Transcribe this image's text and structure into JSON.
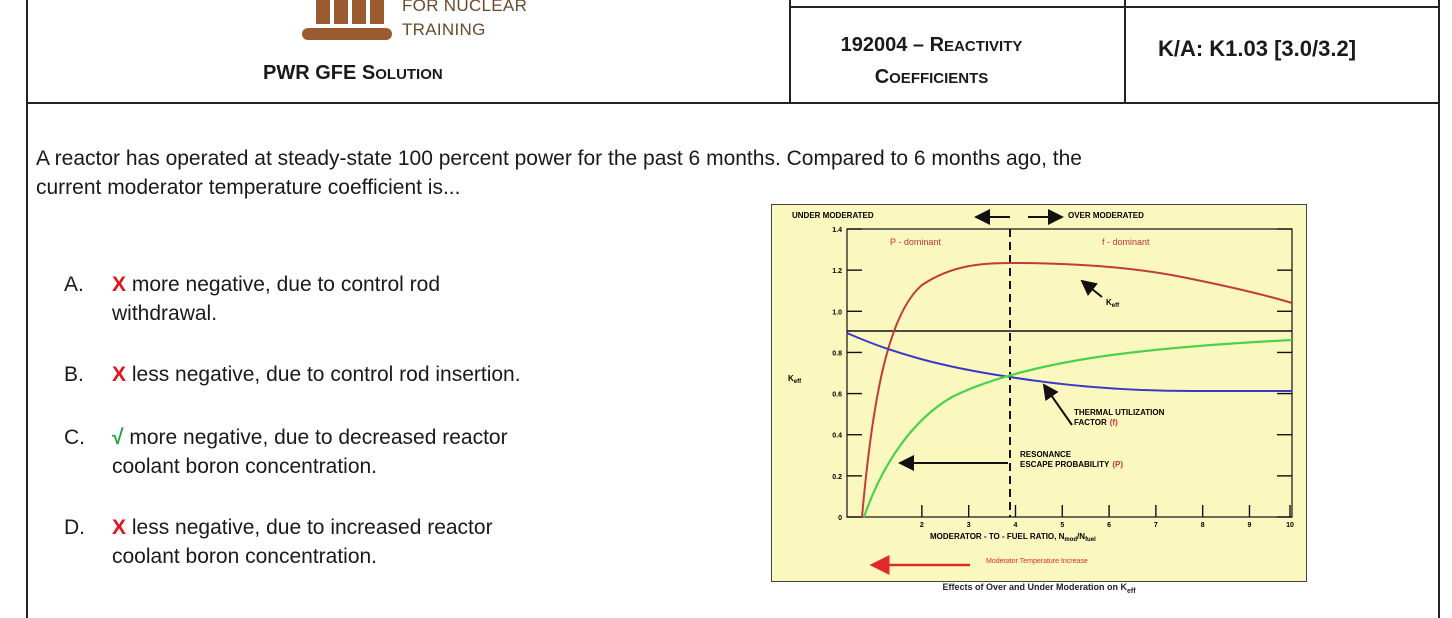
{
  "header": {
    "logo_line1": "FOR NUCLEAR",
    "logo_line2": "TRAINING",
    "title_lead": "PWR GFE S",
    "title_sc": "OLUTION",
    "topic_line1_num": "192004 – R",
    "topic_line1_sc": "EACTIVITY",
    "topic_line2_lead": "C",
    "topic_line2_sc": "OEFFICIENTS",
    "ka": "K/A: K1.03 [3.0/3.2]"
  },
  "question": {
    "line1": "A reactor has operated at steady-state 100 percent power for the past 6 months.  Compared to 6 months ago, the",
    "line2": "current moderator temperature coefficient is..."
  },
  "answers": [
    {
      "letter": "A.",
      "mark": "X",
      "line1": " more negative, due to control rod",
      "line2": "withdrawal.",
      "correct": false
    },
    {
      "letter": "B.",
      "mark": "X",
      "line1": " less negative, due to control rod insertion.",
      "line2": "",
      "correct": false
    },
    {
      "letter": "C.",
      "mark": "√",
      "line1": " more negative, due to decreased reactor",
      "line2": "coolant boron concentration.",
      "correct": true
    },
    {
      "letter": "D.",
      "mark": "X",
      "line1": " less negative, due to increased reactor",
      "line2": "coolant boron concentration.",
      "correct": false
    }
  ],
  "figure": {
    "under_label": "UNDER MODERATED",
    "over_label": "OVER MODERATED",
    "p_dominant": "P - dominant",
    "f_dominant": "f - dominant",
    "keff_label": "K",
    "keff_sub": "eff",
    "y_axis_label": "K",
    "y_axis_sub": "eff",
    "thermal_label1": "THERMAL UTILIZATION",
    "thermal_label2": "FACTOR",
    "thermal_sym": "(f)",
    "resonance_label1": "RESONANCE",
    "resonance_label2": "ESCAPE PROBABILITY",
    "resonance_sym": "(P)",
    "x_axis_label": "MODERATOR - TO - FUEL RATIO, N",
    "x_sub1": "mod",
    "x_sub2": "fuel",
    "temp_increase": "Moderator Temperature Increase",
    "caption": "Effects of Over and Under Moderation on K",
    "caption_sub": "eff",
    "y_ticks": [
      "0",
      "0.2",
      "0.4",
      "0.6",
      "0.8",
      "1.0",
      "1.2",
      "1.4"
    ],
    "x_ticks": [
      "2",
      "3",
      "4",
      "5",
      "6",
      "7",
      "8",
      "9",
      "10"
    ],
    "colors": {
      "keff": "#c23a3a",
      "f": "#3a3ac8",
      "p": "#4ad24a",
      "temp_arrow": "#e02a2a"
    }
  }
}
